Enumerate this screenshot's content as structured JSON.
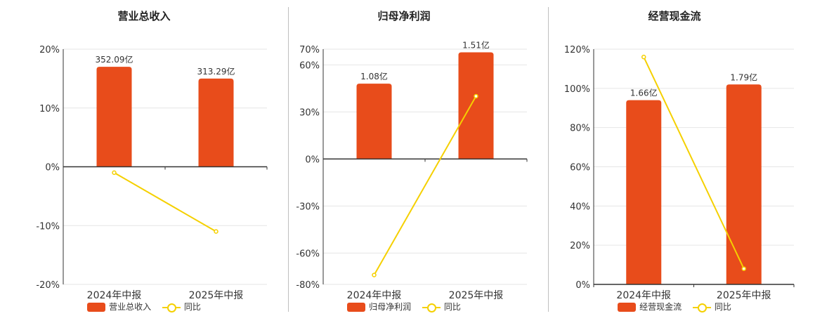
{
  "colors": {
    "bar": "#e84c1b",
    "line": "#f5d000",
    "axis": "#333333",
    "grid": "#e6e6e6",
    "text": "#333333"
  },
  "legend_line_label": "同比",
  "chart_data": [
    {
      "type": "bar",
      "title": "营业总收入",
      "categories": [
        "2024年中报",
        "2025年中报"
      ],
      "series": [
        {
          "name": "营业总收入",
          "type": "bar",
          "values": [
            17.0,
            15.0
          ],
          "labels": [
            "352.09亿",
            "313.29亿"
          ]
        },
        {
          "name": "同比",
          "type": "line",
          "values": [
            -1.0,
            -11.0
          ]
        }
      ],
      "ylim": [
        -20,
        20
      ],
      "yticks": [
        20,
        10,
        0,
        -10,
        -20
      ],
      "ytick_labels": [
        "20%",
        "10%",
        "0%",
        "-10%",
        "-20%"
      ]
    },
    {
      "type": "bar",
      "title": "归母净利润",
      "categories": [
        "2024年中报",
        "2025年中报"
      ],
      "series": [
        {
          "name": "归母净利润",
          "type": "bar",
          "values": [
            48,
            68
          ],
          "labels": [
            "1.08亿",
            "1.51亿"
          ]
        },
        {
          "name": "同比",
          "type": "line",
          "values": [
            -74,
            40
          ]
        }
      ],
      "ylim": [
        -80,
        70
      ],
      "yticks": [
        70,
        60,
        30,
        0,
        -30,
        -60,
        -80
      ],
      "ytick_labels": [
        "70%",
        "60%",
        "30%",
        "0%",
        "-30%",
        "-60%",
        "-80%"
      ]
    },
    {
      "type": "bar",
      "title": "经营现金流",
      "categories": [
        "2024年中报",
        "2025年中报"
      ],
      "series": [
        {
          "name": "经营现金流",
          "type": "bar",
          "values": [
            94,
            102
          ],
          "labels": [
            "1.66亿",
            "1.79亿"
          ]
        },
        {
          "name": "同比",
          "type": "line",
          "values": [
            116,
            8
          ]
        }
      ],
      "ylim": [
        0,
        120
      ],
      "yticks": [
        120,
        100,
        80,
        60,
        40,
        20,
        0
      ],
      "ytick_labels": [
        "120%",
        "100%",
        "80%",
        "60%",
        "40%",
        "20%",
        "0%"
      ]
    }
  ]
}
